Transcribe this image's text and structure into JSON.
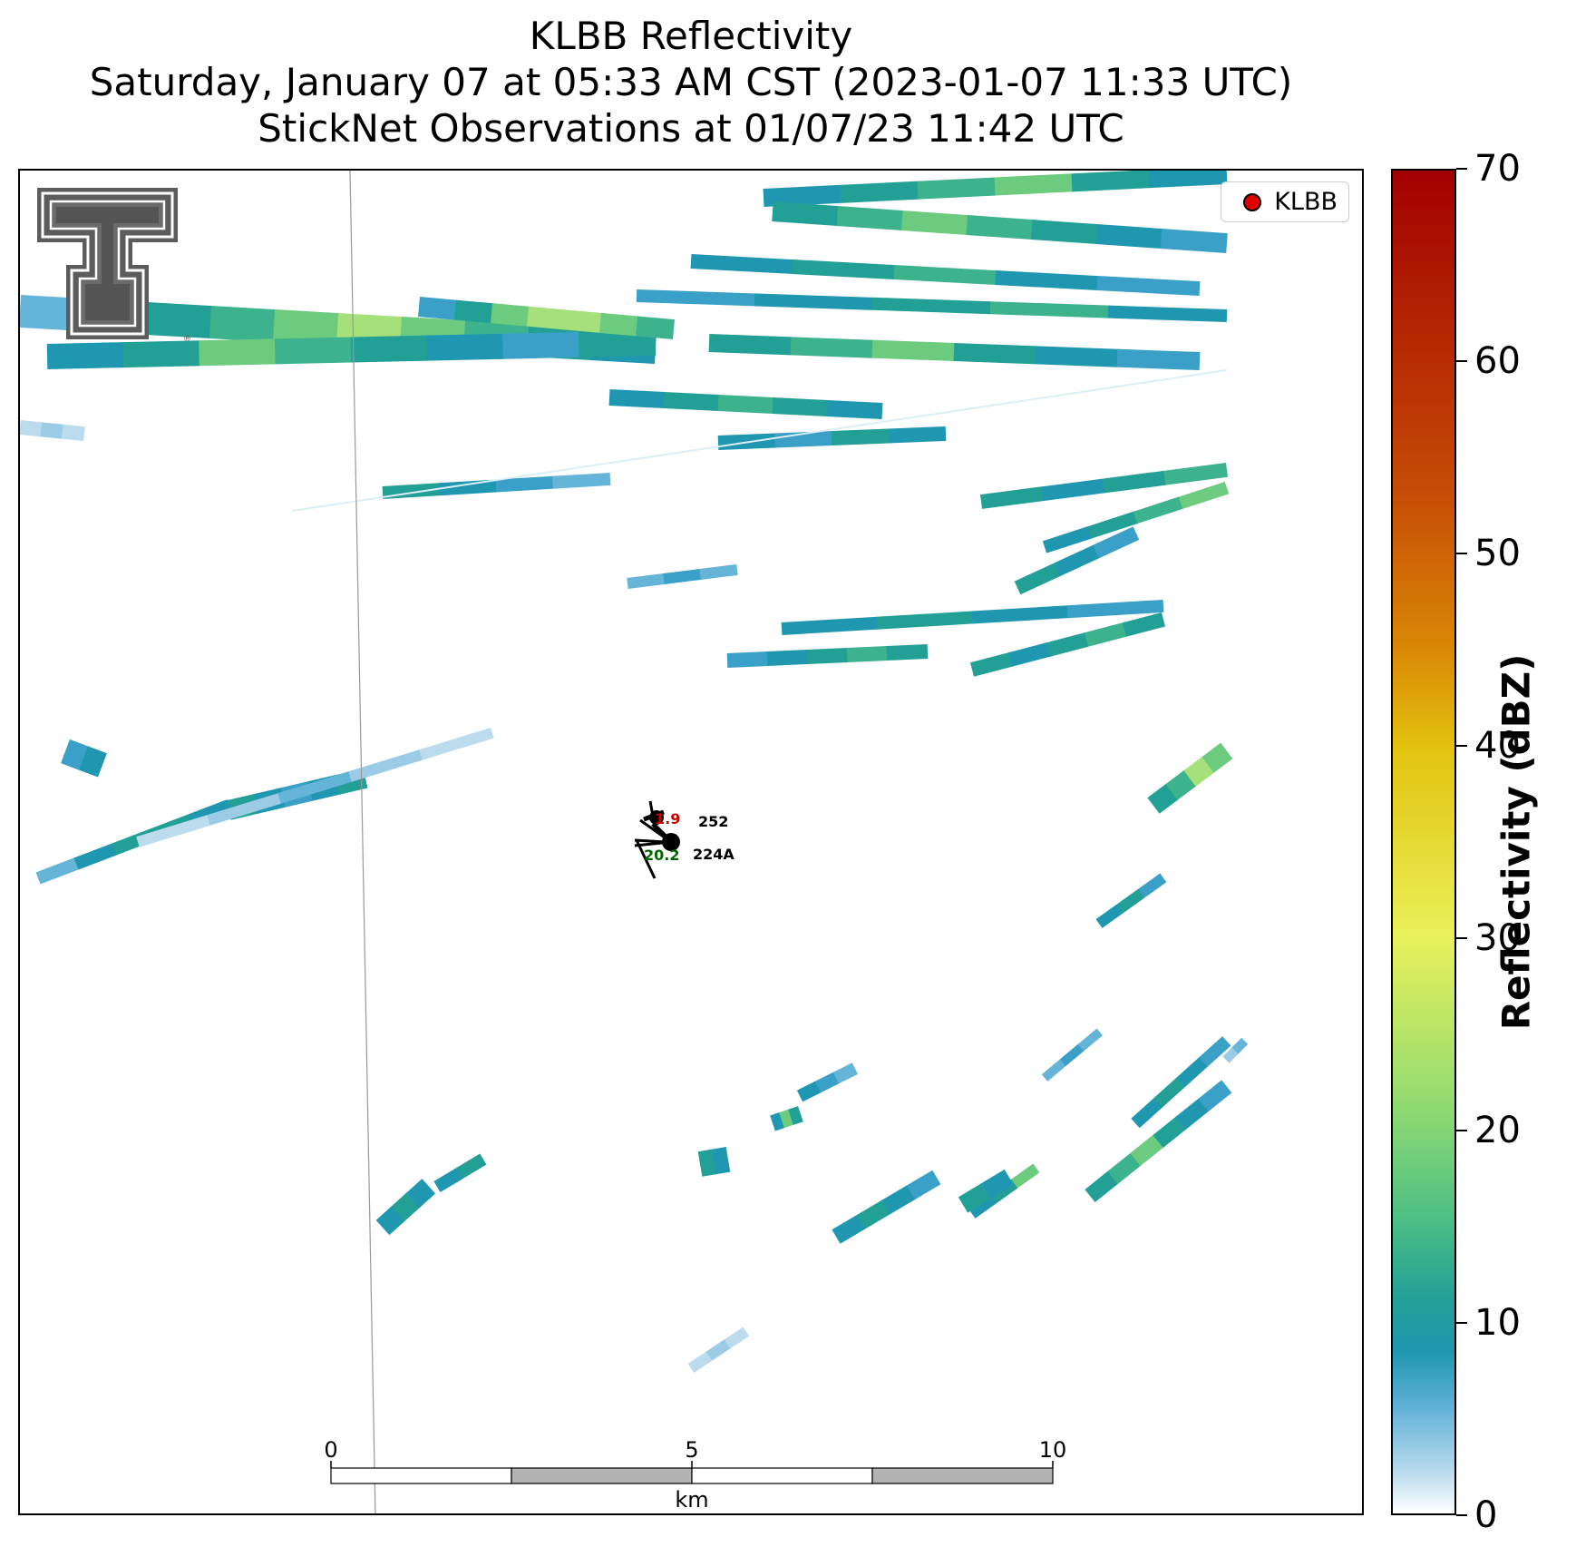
{
  "title": {
    "line1": "KLBB Reflectivity",
    "line2": "Saturday, January 07 at 05:33 AM CST (2023-01-07 11:33 UTC)",
    "line3": "StickNet Observations at 01/07/23 11:42 UTC"
  },
  "logo": {
    "name": "texas-tech-double-t-logo"
  },
  "legend": {
    "label": "KLBB",
    "marker_color": "#e00000"
  },
  "stations": [
    {
      "id": "252",
      "temperature": "1.9",
      "temperature_color": "#cc0000"
    },
    {
      "id": "224A",
      "dewpoint": "20.2",
      "dewpoint_color": "#006600"
    }
  ],
  "scalebar": {
    "ticks": [
      "0",
      "5",
      "10"
    ],
    "unit": "km"
  },
  "colorbar": {
    "title": "Reflectivity (dBZ)",
    "ticks": [
      "0",
      "10",
      "20",
      "30",
      "40",
      "50",
      "60",
      "70"
    ],
    "range": [
      0,
      70
    ],
    "colors": {
      "low": "#ffffff",
      "light_blue": "#a6d2ea",
      "teal": "#2097b1",
      "green": "#8fda72",
      "yellow": "#e9f15a",
      "orange": "#da8a06",
      "dark_red": "#a20000"
    }
  }
}
